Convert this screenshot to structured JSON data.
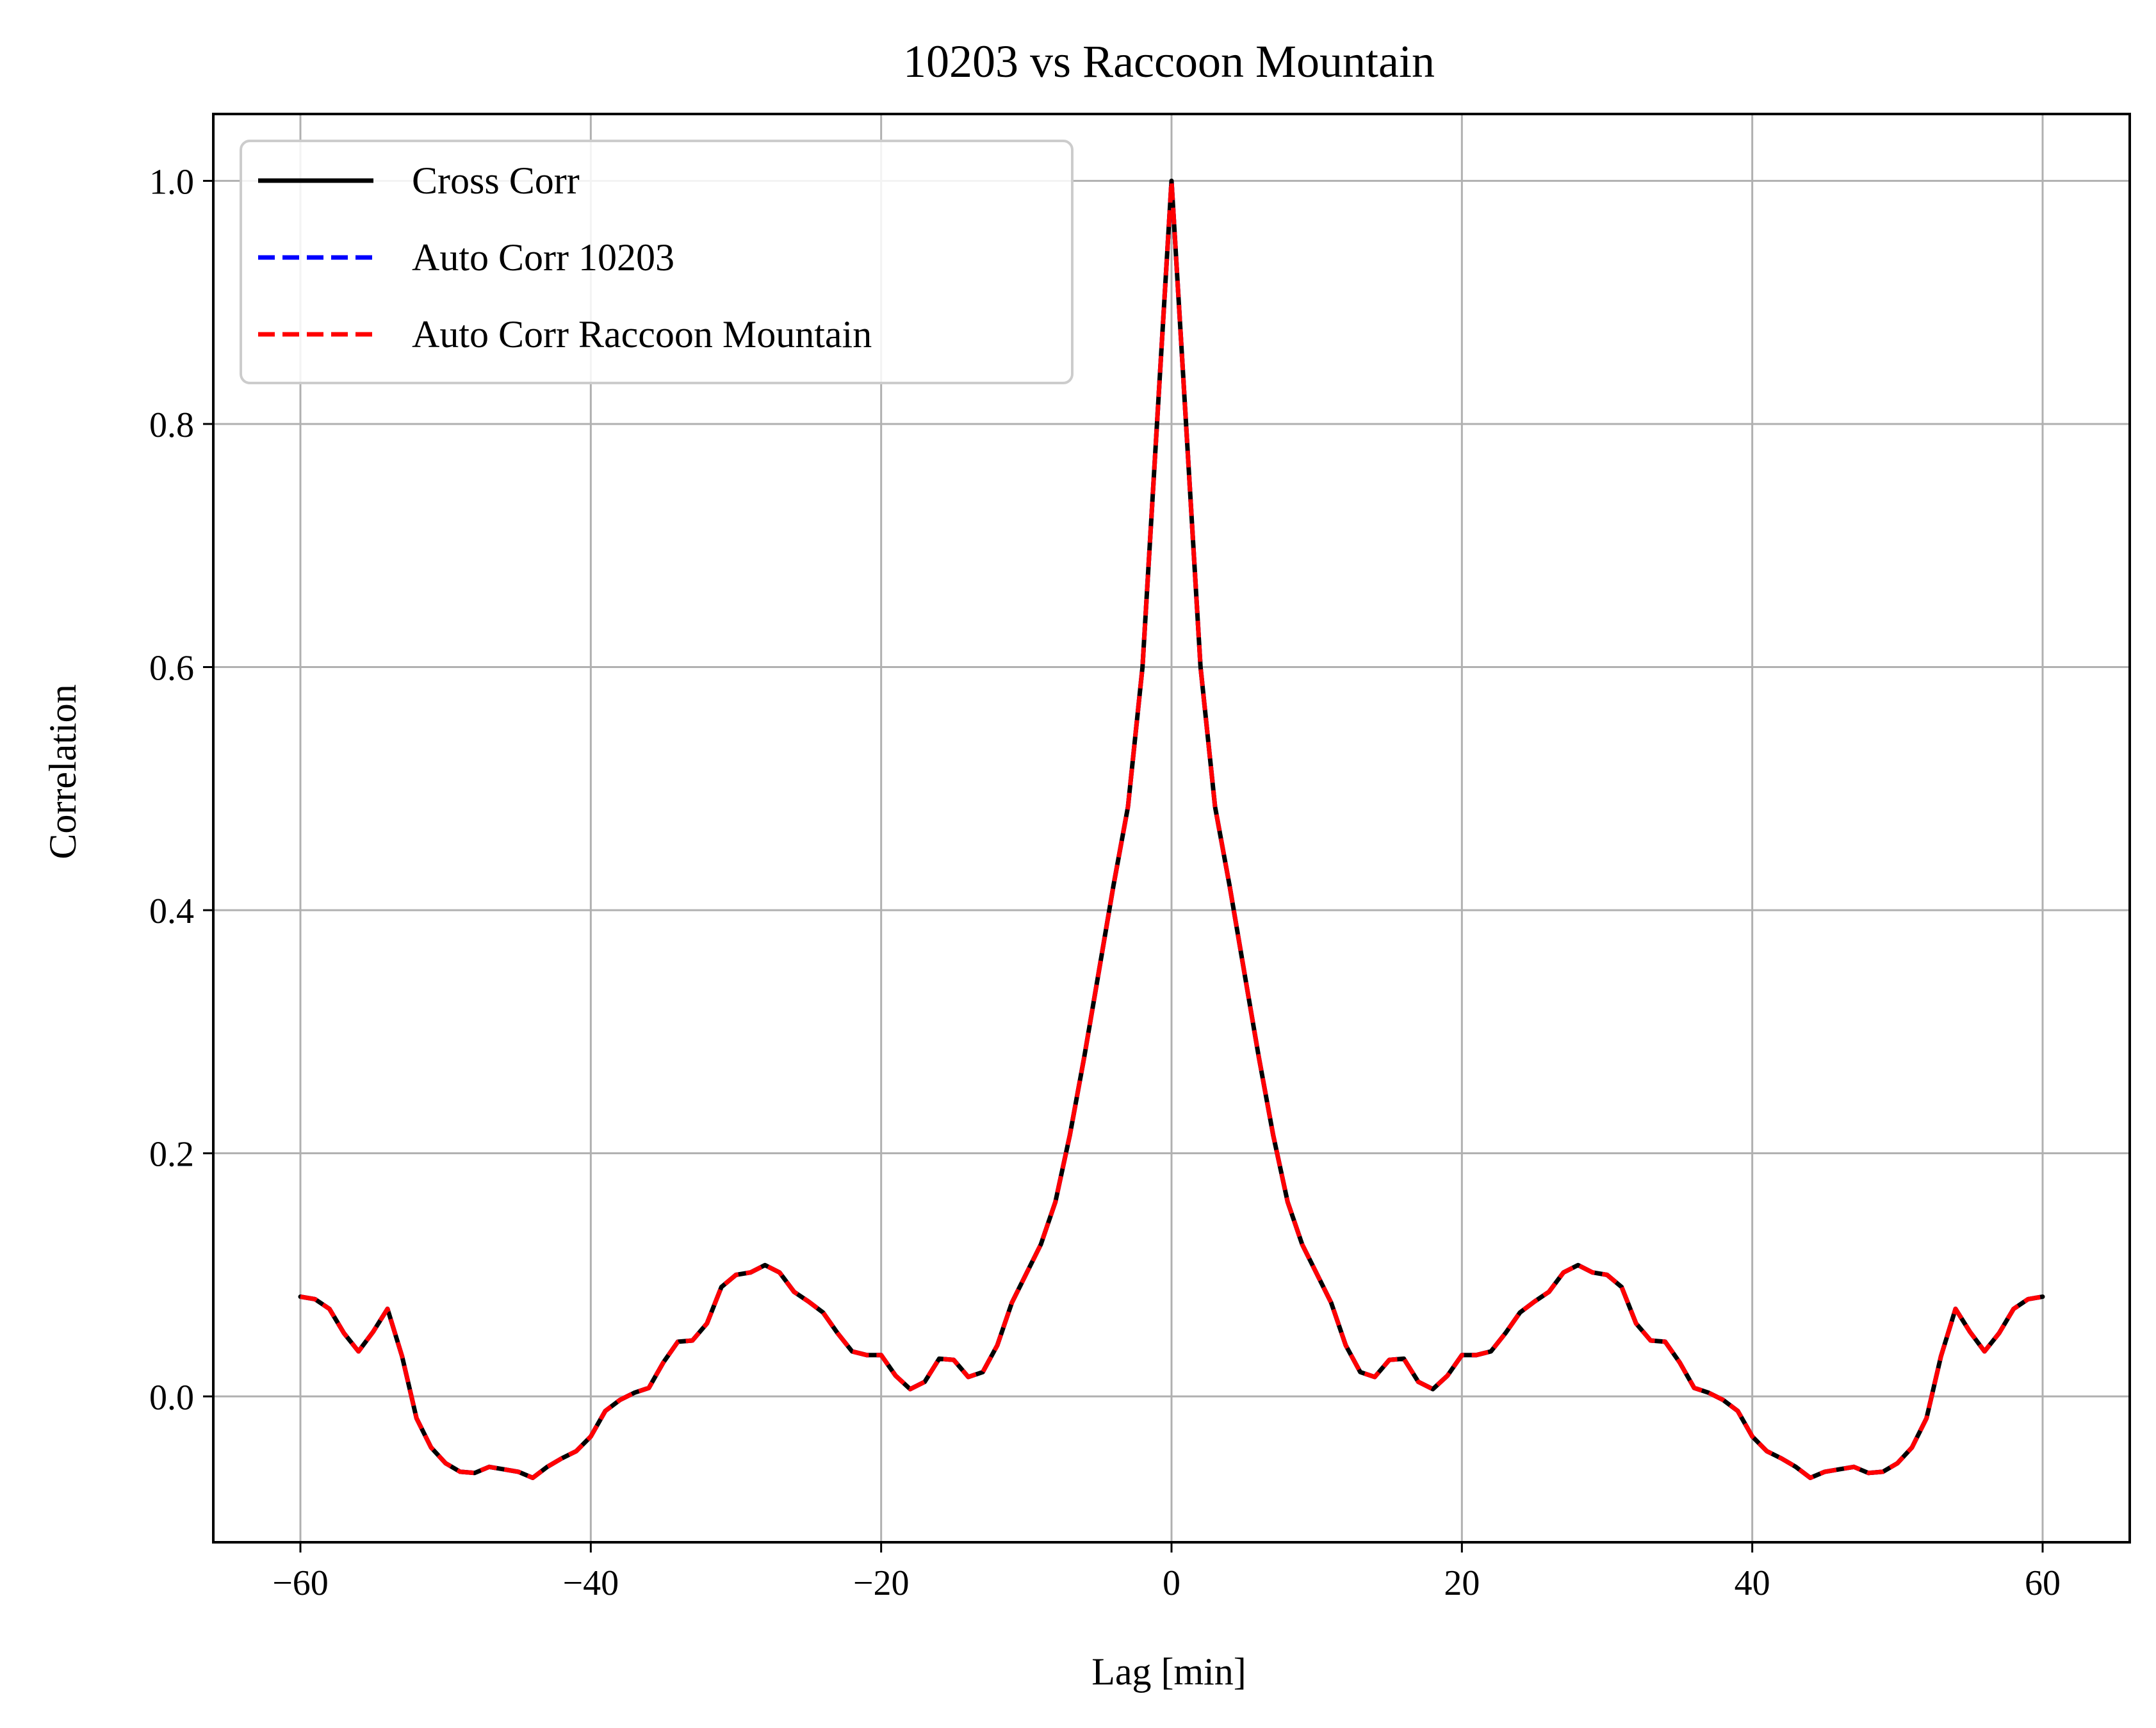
{
  "chart_data": {
    "type": "line",
    "title": "10203 vs Raccoon Mountain",
    "xlabel": "Lag [min]",
    "ylabel": "Correlation",
    "xlim": [
      -66,
      66
    ],
    "ylim": [
      -0.12,
      1.055
    ],
    "xticks": [
      -60,
      -40,
      -20,
      0,
      20,
      40,
      60
    ],
    "xtick_labels": [
      "−60",
      "−40",
      "−20",
      "0",
      "20",
      "40",
      "60"
    ],
    "yticks": [
      0.0,
      0.2,
      0.4,
      0.6,
      0.8,
      1.0
    ],
    "ytick_labels": [
      "0.0",
      "0.2",
      "0.4",
      "0.6",
      "0.8",
      "1.0"
    ],
    "grid": true,
    "legend_position": "upper-left",
    "x": [
      -60,
      -59,
      -58,
      -57,
      -56,
      -55,
      -54,
      -53,
      -52,
      -51,
      -50,
      -49,
      -48,
      -47,
      -46,
      -45,
      -44,
      -43,
      -42,
      -41,
      -40,
      -39,
      -38,
      -37,
      -36,
      -35,
      -34,
      -33,
      -32,
      -31,
      -30,
      -29,
      -28,
      -27,
      -26,
      -25,
      -24,
      -23,
      -22,
      -21,
      -20,
      -19,
      -18,
      -17,
      -16,
      -15,
      -14,
      -13,
      -12,
      -11,
      -10,
      -9,
      -8,
      -7,
      -6,
      -5,
      -4,
      -3,
      -2,
      -1,
      0,
      1,
      2,
      3,
      4,
      5,
      6,
      7,
      8,
      9,
      10,
      11,
      12,
      13,
      14,
      15,
      16,
      17,
      18,
      19,
      20,
      21,
      22,
      23,
      24,
      25,
      26,
      27,
      28,
      29,
      30,
      31,
      32,
      33,
      34,
      35,
      36,
      37,
      38,
      39,
      40,
      41,
      42,
      43,
      44,
      45,
      46,
      47,
      48,
      49,
      50,
      51,
      52,
      53,
      54,
      55,
      56,
      57,
      58,
      59,
      60
    ],
    "series": [
      {
        "name": "Cross Corr",
        "color": "#000000",
        "style": "solid",
        "values": [
          0.082,
          0.08,
          0.072,
          0.052,
          0.037,
          0.053,
          0.072,
          0.033,
          -0.018,
          -0.042,
          -0.055,
          -0.062,
          -0.063,
          -0.058,
          -0.06,
          -0.062,
          -0.067,
          -0.058,
          -0.051,
          -0.045,
          -0.033,
          -0.012,
          -0.003,
          0.003,
          0.007,
          0.028,
          0.045,
          0.046,
          0.06,
          0.09,
          0.1,
          0.102,
          0.108,
          0.102,
          0.086,
          0.078,
          0.069,
          0.052,
          0.037,
          0.034,
          0.034,
          0.017,
          0.006,
          0.012,
          0.031,
          0.03,
          0.016,
          0.02,
          0.042,
          0.077,
          0.101,
          0.125,
          0.16,
          0.215,
          0.28,
          0.35,
          0.42,
          0.485,
          0.6,
          0.8,
          1.0,
          0.8,
          0.6,
          0.485,
          0.42,
          0.35,
          0.28,
          0.215,
          0.16,
          0.125,
          0.101,
          0.077,
          0.042,
          0.02,
          0.016,
          0.03,
          0.031,
          0.012,
          0.006,
          0.017,
          0.034,
          0.034,
          0.037,
          0.052,
          0.069,
          0.078,
          0.086,
          0.102,
          0.108,
          0.102,
          0.1,
          0.09,
          0.06,
          0.046,
          0.045,
          0.028,
          0.007,
          0.003,
          -0.003,
          -0.012,
          -0.033,
          -0.045,
          -0.051,
          -0.058,
          -0.067,
          -0.062,
          -0.06,
          -0.058,
          -0.063,
          -0.062,
          -0.055,
          -0.042,
          -0.018,
          0.033,
          0.072,
          0.053,
          0.037,
          0.052,
          0.072,
          0.08,
          0.082
        ]
      },
      {
        "name": "Auto Corr 10203",
        "color": "#0000ff",
        "style": "dashed",
        "values": [
          0.082,
          0.08,
          0.072,
          0.052,
          0.037,
          0.053,
          0.072,
          0.033,
          -0.018,
          -0.042,
          -0.055,
          -0.062,
          -0.063,
          -0.058,
          -0.06,
          -0.062,
          -0.067,
          -0.058,
          -0.051,
          -0.045,
          -0.033,
          -0.012,
          -0.003,
          0.003,
          0.007,
          0.028,
          0.045,
          0.046,
          0.06,
          0.09,
          0.1,
          0.102,
          0.108,
          0.102,
          0.086,
          0.078,
          0.069,
          0.052,
          0.037,
          0.034,
          0.034,
          0.017,
          0.006,
          0.012,
          0.031,
          0.03,
          0.016,
          0.02,
          0.042,
          0.077,
          0.101,
          0.125,
          0.16,
          0.215,
          0.28,
          0.35,
          0.42,
          0.485,
          0.6,
          0.8,
          1.0,
          0.8,
          0.6,
          0.485,
          0.42,
          0.35,
          0.28,
          0.215,
          0.16,
          0.125,
          0.101,
          0.077,
          0.042,
          0.02,
          0.016,
          0.03,
          0.031,
          0.012,
          0.006,
          0.017,
          0.034,
          0.034,
          0.037,
          0.052,
          0.069,
          0.078,
          0.086,
          0.102,
          0.108,
          0.102,
          0.1,
          0.09,
          0.06,
          0.046,
          0.045,
          0.028,
          0.007,
          0.003,
          -0.003,
          -0.012,
          -0.033,
          -0.045,
          -0.051,
          -0.058,
          -0.067,
          -0.062,
          -0.06,
          -0.058,
          -0.063,
          -0.062,
          -0.055,
          -0.042,
          -0.018,
          0.033,
          0.072,
          0.053,
          0.037,
          0.052,
          0.072,
          0.08,
          0.082
        ]
      },
      {
        "name": "Auto Corr Raccoon Mountain",
        "color": "#ff0000",
        "style": "dashed",
        "values": [
          0.082,
          0.08,
          0.072,
          0.052,
          0.037,
          0.053,
          0.072,
          0.033,
          -0.018,
          -0.042,
          -0.055,
          -0.062,
          -0.063,
          -0.058,
          -0.06,
          -0.062,
          -0.067,
          -0.058,
          -0.051,
          -0.045,
          -0.033,
          -0.012,
          -0.003,
          0.003,
          0.007,
          0.028,
          0.045,
          0.046,
          0.06,
          0.09,
          0.1,
          0.102,
          0.108,
          0.102,
          0.086,
          0.078,
          0.069,
          0.052,
          0.037,
          0.034,
          0.034,
          0.017,
          0.006,
          0.012,
          0.031,
          0.03,
          0.016,
          0.02,
          0.042,
          0.077,
          0.101,
          0.125,
          0.16,
          0.215,
          0.28,
          0.35,
          0.42,
          0.485,
          0.6,
          0.8,
          1.0,
          0.8,
          0.6,
          0.485,
          0.42,
          0.35,
          0.28,
          0.215,
          0.16,
          0.125,
          0.101,
          0.077,
          0.042,
          0.02,
          0.016,
          0.03,
          0.031,
          0.012,
          0.006,
          0.017,
          0.034,
          0.034,
          0.037,
          0.052,
          0.069,
          0.078,
          0.086,
          0.102,
          0.108,
          0.102,
          0.1,
          0.09,
          0.06,
          0.046,
          0.045,
          0.028,
          0.007,
          0.003,
          -0.003,
          -0.012,
          -0.033,
          -0.045,
          -0.051,
          -0.058,
          -0.067,
          -0.062,
          -0.06,
          -0.058,
          -0.063,
          -0.062,
          -0.055,
          -0.042,
          -0.018,
          0.033,
          0.072,
          0.053,
          0.037,
          0.052,
          0.072,
          0.08,
          0.082
        ]
      }
    ]
  }
}
